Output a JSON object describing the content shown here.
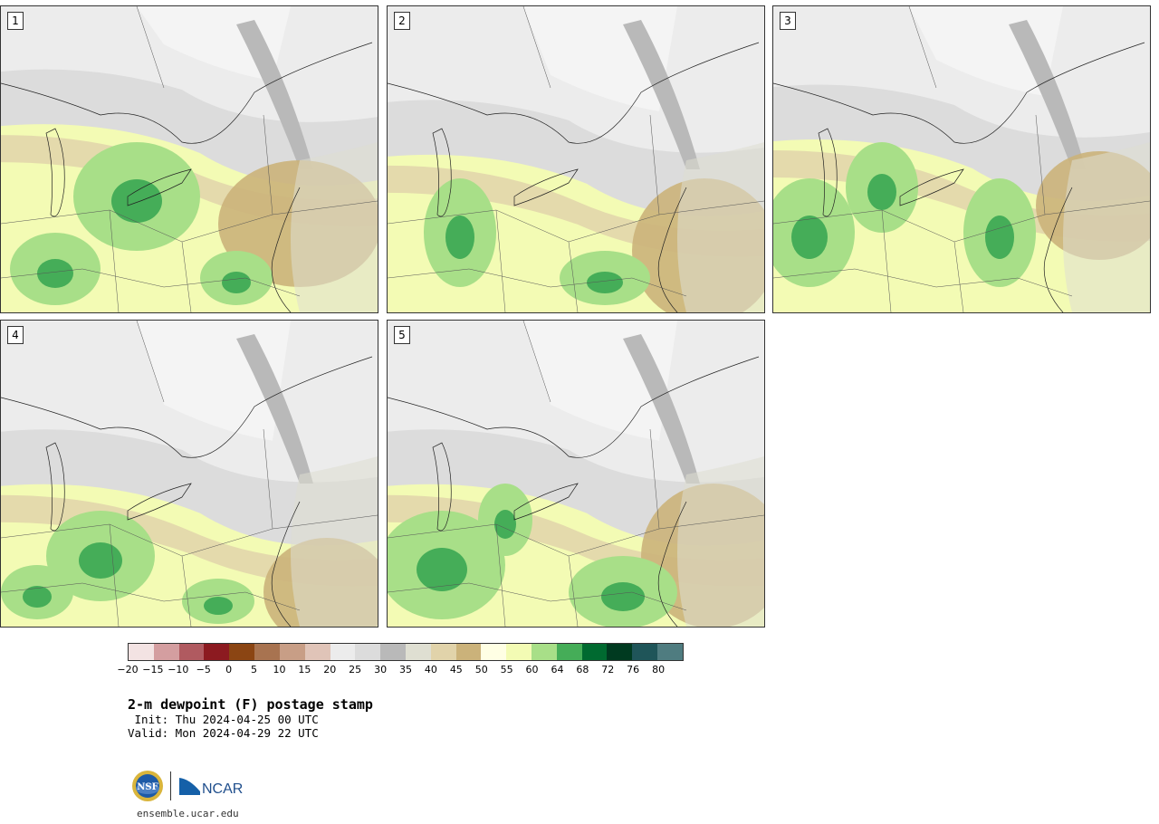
{
  "panels": [
    {
      "number": "1"
    },
    {
      "number": "2"
    },
    {
      "number": "3"
    },
    {
      "number": "4"
    },
    {
      "number": "5"
    }
  ],
  "legend": {
    "colors": [
      "#f3e3e3",
      "#d49ea0",
      "#b05a60",
      "#8c1a20",
      "#8b4513",
      "#a87350",
      "#c89e86",
      "#e0c4b8",
      "#ececec",
      "#dcdcdc",
      "#b9b9b9",
      "#dfdfd2",
      "#e1d3aa",
      "#cbb27a",
      "#ffffe4",
      "#f3fbb4",
      "#a8df88",
      "#45ad58",
      "#006a30",
      "#003a20",
      "#1f5559",
      "#4f7c80"
    ],
    "ticks": [
      "−20",
      "−15",
      "−10",
      "−5",
      "0",
      "5",
      "10",
      "15",
      "20",
      "25",
      "30",
      "35",
      "40",
      "45",
      "50",
      "55",
      "60",
      "64",
      "68",
      "72",
      "76",
      "80"
    ]
  },
  "title": "2-m dewpoint (F) postage stamp",
  "init_line": " Init: Thu 2024-04-25 00 UTC",
  "valid_line": "Valid: Mon 2024-04-29 22 UTC",
  "logos": {
    "nsf": "NSF",
    "ncar": "NCAR"
  },
  "website": "ensemble.ucar.edu"
}
